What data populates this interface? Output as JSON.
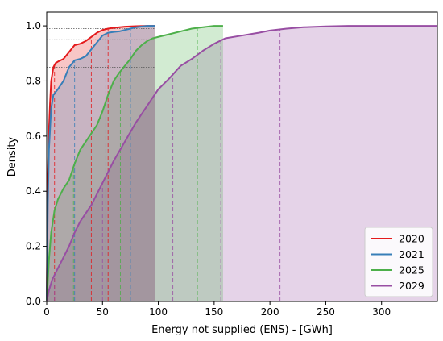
{
  "chart_data": {
    "type": "area",
    "xlabel": "Energy not supplied (ENS) - [GWh]",
    "ylabel": "Density",
    "xlim": [
      0,
      350
    ],
    "ylim": [
      0,
      1.05
    ],
    "xticks": [
      0,
      50,
      100,
      150,
      200,
      250,
      300
    ],
    "yticks": [
      0.0,
      0.2,
      0.4,
      0.6,
      0.8,
      1.0
    ],
    "legend_position": "bottom-right",
    "grid": false,
    "series": [
      {
        "name": "2020",
        "color": "#e41a1c",
        "fill_alpha": 0.25,
        "x": [
          0,
          1,
          2,
          3,
          4,
          6,
          8,
          10,
          15,
          20,
          25,
          30,
          35,
          40,
          45,
          50,
          55,
          60,
          70,
          80,
          90,
          97
        ],
        "y": [
          0.0,
          0.45,
          0.62,
          0.72,
          0.8,
          0.85,
          0.865,
          0.87,
          0.88,
          0.905,
          0.93,
          0.935,
          0.945,
          0.96,
          0.975,
          0.985,
          0.99,
          0.993,
          0.997,
          0.999,
          1.0,
          1.0
        ],
        "quantile_lines_x": [
          7,
          40,
          55
        ]
      },
      {
        "name": "2021",
        "color": "#377eb8",
        "fill_alpha": 0.25,
        "x": [
          0,
          1,
          2,
          4,
          6,
          8,
          10,
          15,
          20,
          25,
          30,
          35,
          40,
          45,
          50,
          55,
          60,
          65,
          70,
          75,
          80,
          90,
          97
        ],
        "y": [
          0.0,
          0.35,
          0.55,
          0.7,
          0.75,
          0.76,
          0.77,
          0.8,
          0.85,
          0.875,
          0.88,
          0.89,
          0.915,
          0.94,
          0.965,
          0.975,
          0.978,
          0.98,
          0.985,
          0.99,
          0.995,
          1.0,
          1.0
        ],
        "quantile_lines_x": [
          25,
          53,
          75
        ]
      },
      {
        "name": "2025",
        "color": "#4daf4a",
        "fill_alpha": 0.25,
        "x": [
          0,
          2,
          4,
          7,
          10,
          15,
          20,
          25,
          30,
          35,
          40,
          45,
          50,
          55,
          60,
          65,
          70,
          75,
          80,
          85,
          90,
          95,
          100,
          110,
          120,
          130,
          140,
          150,
          158
        ],
        "y": [
          0.0,
          0.15,
          0.25,
          0.33,
          0.37,
          0.41,
          0.44,
          0.5,
          0.55,
          0.58,
          0.61,
          0.64,
          0.69,
          0.75,
          0.8,
          0.83,
          0.855,
          0.88,
          0.91,
          0.93,
          0.945,
          0.955,
          0.96,
          0.97,
          0.98,
          0.99,
          0.995,
          1.0,
          1.0
        ],
        "quantile_lines_x": [
          24,
          66,
          135
        ]
      },
      {
        "name": "2029",
        "color": "#984ea3",
        "fill_alpha": 0.25,
        "x": [
          0,
          2,
          5,
          10,
          15,
          20,
          25,
          30,
          40,
          50,
          60,
          70,
          80,
          90,
          100,
          110,
          120,
          130,
          140,
          150,
          160,
          175,
          190,
          200,
          215,
          230,
          250,
          270,
          300,
          350
        ],
        "y": [
          0.0,
          0.04,
          0.08,
          0.12,
          0.16,
          0.2,
          0.25,
          0.29,
          0.35,
          0.43,
          0.51,
          0.58,
          0.65,
          0.71,
          0.77,
          0.81,
          0.855,
          0.88,
          0.91,
          0.935,
          0.955,
          0.965,
          0.975,
          0.983,
          0.99,
          0.995,
          0.998,
          1.0,
          1.0,
          1.0
        ],
        "quantile_lines_x": [
          7,
          50,
          113,
          156,
          209
        ]
      }
    ],
    "reference_lines": [
      {
        "series": "2020",
        "y": 0.99,
        "x_end": 97
      },
      {
        "series": "2021",
        "y": 0.95,
        "x_end": 97
      },
      {
        "series": "2025",
        "y": 0.85,
        "x_end": 97
      }
    ]
  }
}
